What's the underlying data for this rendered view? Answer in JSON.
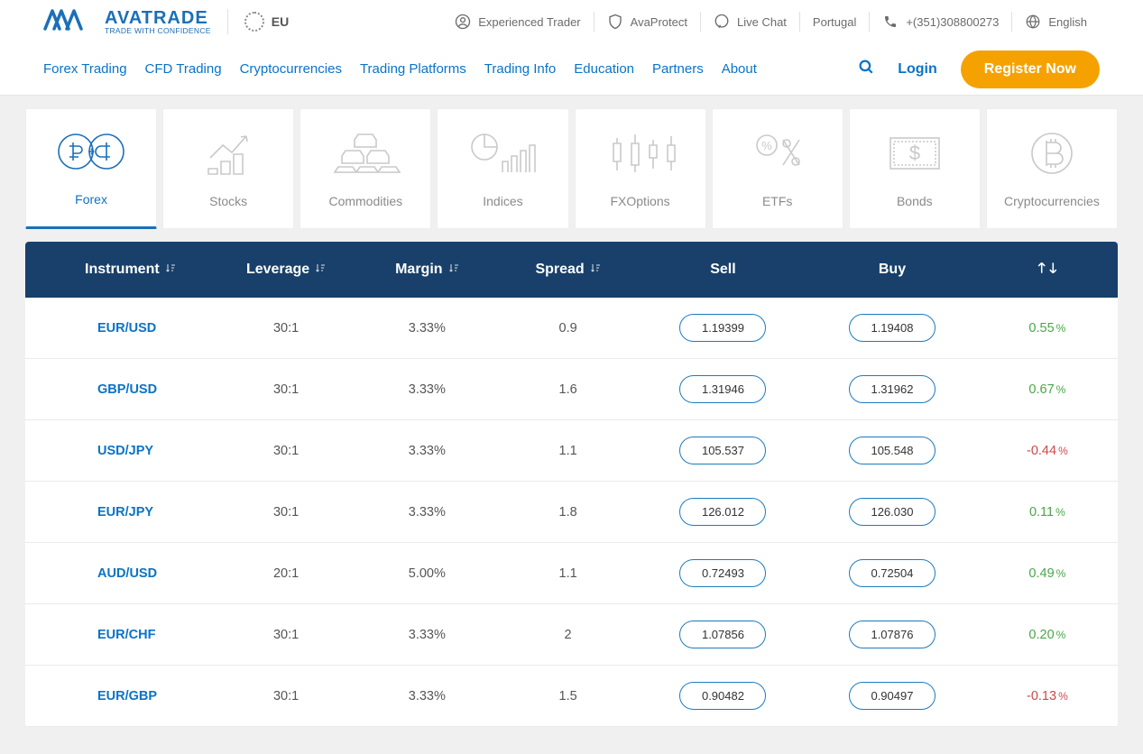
{
  "brand": {
    "name": "AVATRADE",
    "tagline": "TRADE WITH CONFIDENCE"
  },
  "region": "EU",
  "topbar": {
    "items": [
      {
        "label": "Experienced Trader",
        "icon": "user"
      },
      {
        "label": "AvaProtect",
        "icon": "shield"
      },
      {
        "label": "Live Chat",
        "icon": "chat"
      },
      {
        "label": "Portugal",
        "icon": null
      },
      {
        "label": "+(351)308800273",
        "icon": "phone"
      },
      {
        "label": "English",
        "icon": "globe"
      }
    ]
  },
  "nav": {
    "links": [
      "Forex Trading",
      "CFD Trading",
      "Cryptocurrencies",
      "Trading Platforms",
      "Trading Info",
      "Education",
      "Partners",
      "About"
    ],
    "login": "Login",
    "register": "Register Now"
  },
  "categories": [
    {
      "key": "forex",
      "label": "Forex",
      "active": true
    },
    {
      "key": "stocks",
      "label": "Stocks",
      "active": false
    },
    {
      "key": "commodities",
      "label": "Commodities",
      "active": false
    },
    {
      "key": "indices",
      "label": "Indices",
      "active": false
    },
    {
      "key": "fxoptions",
      "label": "FXOptions",
      "active": false
    },
    {
      "key": "etfs",
      "label": "ETFs",
      "active": false
    },
    {
      "key": "bonds",
      "label": "Bonds",
      "active": false
    },
    {
      "key": "crypto",
      "label": "Cryptocurrencies",
      "active": false
    }
  ],
  "table": {
    "headers": [
      "Instrument",
      "Leverage",
      "Margin",
      "Spread",
      "Sell",
      "Buy",
      ""
    ],
    "rows": [
      {
        "instrument": "EUR/USD",
        "leverage": "30:1",
        "margin": "3.33%",
        "spread": "0.9",
        "sell": "1.19399",
        "buy": "1.19408",
        "change": "0.55",
        "dir": "pos"
      },
      {
        "instrument": "GBP/USD",
        "leverage": "30:1",
        "margin": "3.33%",
        "spread": "1.6",
        "sell": "1.31946",
        "buy": "1.31962",
        "change": "0.67",
        "dir": "pos"
      },
      {
        "instrument": "USD/JPY",
        "leverage": "30:1",
        "margin": "3.33%",
        "spread": "1.1",
        "sell": "105.537",
        "buy": "105.548",
        "change": "-0.44",
        "dir": "neg"
      },
      {
        "instrument": "EUR/JPY",
        "leverage": "30:1",
        "margin": "3.33%",
        "spread": "1.8",
        "sell": "126.012",
        "buy": "126.030",
        "change": "0.11",
        "dir": "pos"
      },
      {
        "instrument": "AUD/USD",
        "leverage": "20:1",
        "margin": "5.00%",
        "spread": "1.1",
        "sell": "0.72493",
        "buy": "0.72504",
        "change": "0.49",
        "dir": "pos"
      },
      {
        "instrument": "EUR/CHF",
        "leverage": "30:1",
        "margin": "3.33%",
        "spread": "2",
        "sell": "1.07856",
        "buy": "1.07876",
        "change": "0.20",
        "dir": "pos"
      },
      {
        "instrument": "EUR/GBP",
        "leverage": "30:1",
        "margin": "3.33%",
        "spread": "1.5",
        "sell": "0.90482",
        "buy": "0.90497",
        "change": "-0.13",
        "dir": "neg"
      }
    ]
  },
  "colors": {
    "brand_blue": "#1b6fb8",
    "nav_link": "#0b73c7",
    "register_bg": "#f5a200",
    "header_bg": "#18406a",
    "positive": "#4aa64a",
    "negative": "#d04848",
    "page_bg": "#f0f0f0",
    "icon_grey": "#c9c9c9"
  }
}
